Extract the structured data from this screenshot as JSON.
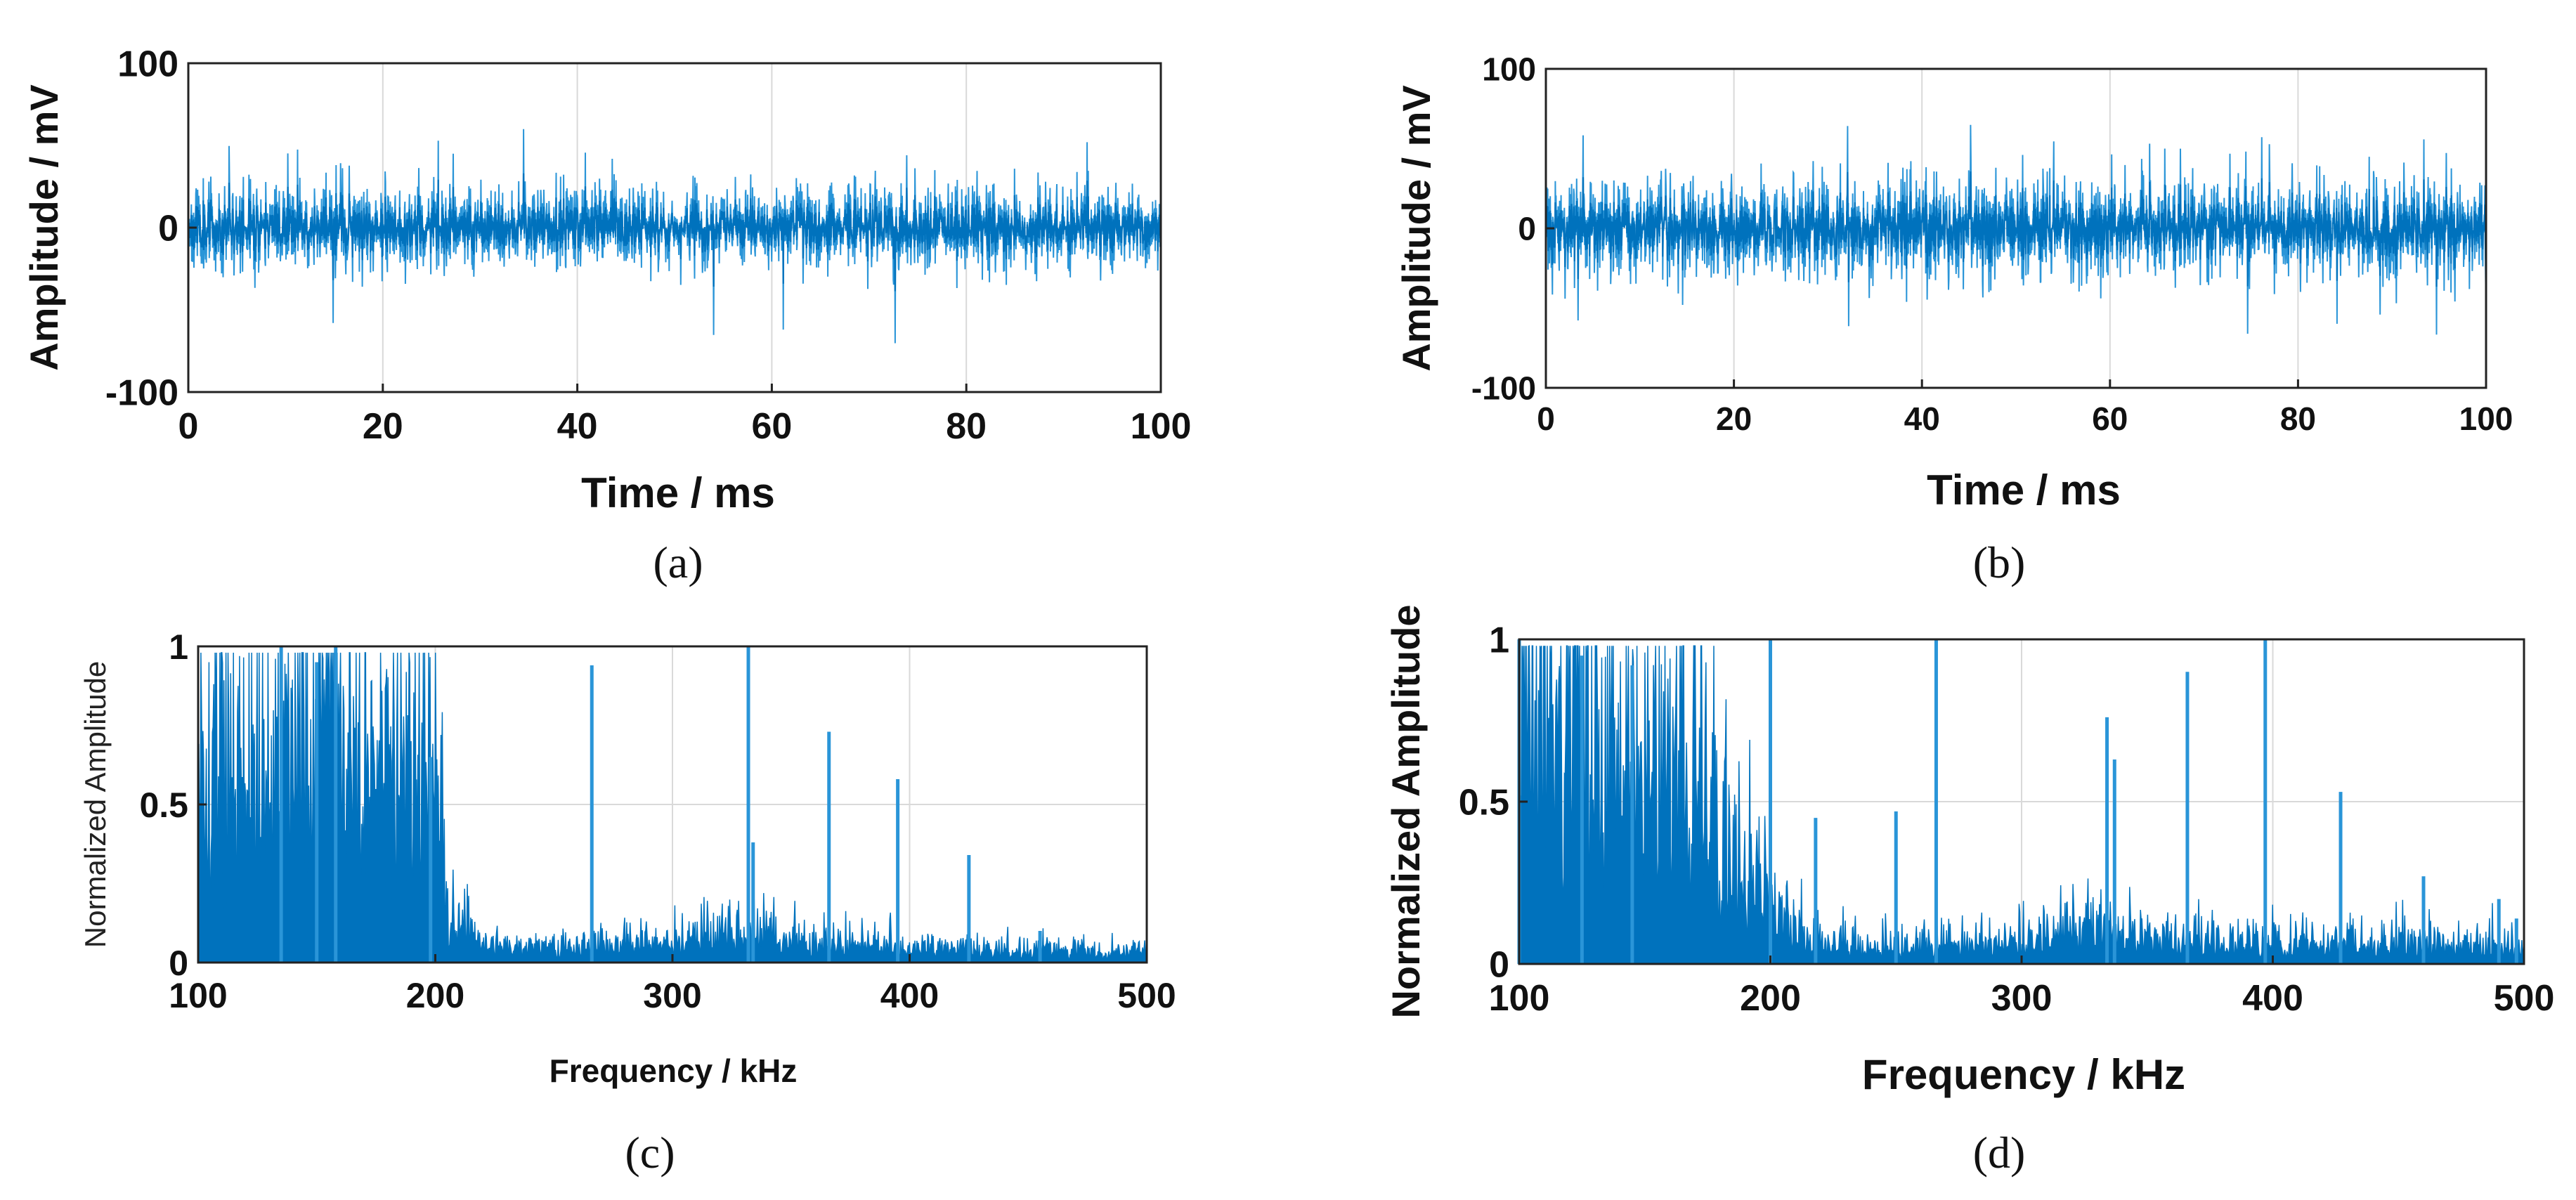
{
  "colors": {
    "signal": "#0072BD",
    "signal_light": "#2a95d8",
    "grid": "#d9d9d9",
    "axis": "#222222"
  },
  "chart_data": [
    {
      "id": "a",
      "type": "line",
      "kind": "time",
      "caption": "(a)",
      "xlabel": "Time / ms",
      "ylabel": "Amplitude / mV",
      "xlim": [
        0,
        100
      ],
      "ylim": [
        -100,
        100
      ],
      "xticks": [
        0,
        20,
        40,
        60,
        80,
        100
      ],
      "yticks": [
        -100,
        0,
        100
      ],
      "xtick_labels": [
        "0",
        "20",
        "40",
        "60",
        "80",
        "100"
      ],
      "ytick_labels": [
        "-100",
        "0",
        "100"
      ],
      "grid": true,
      "noise": {
        "rms": 13,
        "peak_envelope": 38,
        "max_peak": 55,
        "min_peak": -72,
        "seed": 11
      },
      "series": [
        {
          "name": "time-domain signal",
          "description": "broadband noise centered at 0 mV, roughly within ±40 mV with occasional spikes to about +55 / -70 mV"
        }
      ]
    },
    {
      "id": "b",
      "type": "line",
      "kind": "time",
      "caption": "(b)",
      "xlabel": "Time / ms",
      "ylabel": "Amplitude / mV",
      "xlim": [
        0,
        100
      ],
      "ylim": [
        -100,
        100
      ],
      "xticks": [
        0,
        20,
        40,
        60,
        80,
        100
      ],
      "yticks": [
        -100,
        0,
        100
      ],
      "xtick_labels": [
        "0",
        "20",
        "40",
        "60",
        "80",
        "100"
      ],
      "ytick_labels": [
        "-100",
        "0",
        "100"
      ],
      "grid": true,
      "noise": {
        "rms": 16,
        "peak_envelope": 45,
        "max_peak": 65,
        "min_peak": -70,
        "seed": 29
      },
      "series": [
        {
          "name": "time-domain signal",
          "description": "broadband noise centered at 0 mV, roughly within ±50 mV with spikes to about +65 / -70 mV"
        }
      ]
    },
    {
      "id": "c",
      "type": "line",
      "kind": "spectrum",
      "caption": "(c)",
      "xlabel": "Frequency / kHz",
      "ylabel": "Normalized Amplitude",
      "xlim": [
        100,
        500
      ],
      "ylim": [
        0,
        1
      ],
      "xticks": [
        100,
        200,
        300,
        400,
        500
      ],
      "yticks": [
        0,
        0.5,
        1
      ],
      "xtick_labels": [
        "100",
        "200",
        "300",
        "400",
        "500"
      ],
      "ytick_labels": [
        "0",
        "0.5",
        "1"
      ],
      "grid": true,
      "envelope": [
        [
          100,
          0.45
        ],
        [
          120,
          0.42
        ],
        [
          140,
          0.5
        ],
        [
          160,
          0.62
        ],
        [
          180,
          0.5
        ],
        [
          200,
          0.42
        ],
        [
          205,
          0.12
        ],
        [
          220,
          0.05
        ],
        [
          240,
          0.03
        ],
        [
          260,
          0.04
        ],
        [
          300,
          0.05
        ],
        [
          320,
          0.08
        ],
        [
          340,
          0.07
        ],
        [
          360,
          0.05
        ],
        [
          400,
          0.04
        ],
        [
          450,
          0.03
        ],
        [
          500,
          0.025
        ]
      ],
      "spikes": [
        [
          135,
          1.0
        ],
        [
          150,
          0.95
        ],
        [
          158,
          1.0
        ],
        [
          198,
          0.65
        ],
        [
          266,
          0.94
        ],
        [
          332,
          1.0
        ],
        [
          334,
          0.38
        ],
        [
          366,
          0.73
        ],
        [
          395,
          0.58
        ],
        [
          425,
          0.34
        ],
        [
          455,
          0.1
        ]
      ],
      "seed": 5,
      "series": [
        {
          "name": "normalized spectrum"
        }
      ]
    },
    {
      "id": "d",
      "type": "line",
      "kind": "spectrum",
      "caption": "(d)",
      "xlabel": "Frequency / kHz",
      "ylabel": "Normalized Amplitude",
      "xlim": [
        100,
        500
      ],
      "ylim": [
        0,
        1
      ],
      "xticks": [
        100,
        200,
        300,
        400,
        500
      ],
      "yticks": [
        0,
        0.5,
        1
      ],
      "xtick_labels": [
        "100",
        "200",
        "300",
        "400",
        "500"
      ],
      "ytick_labels": [
        "0",
        "0.5",
        "1"
      ],
      "grid": true,
      "envelope": [
        [
          100,
          0.62
        ],
        [
          120,
          0.55
        ],
        [
          140,
          0.52
        ],
        [
          160,
          0.5
        ],
        [
          175,
          0.35
        ],
        [
          190,
          0.2
        ],
        [
          200,
          0.14
        ],
        [
          215,
          0.06
        ],
        [
          240,
          0.04
        ],
        [
          300,
          0.06
        ],
        [
          330,
          0.09
        ],
        [
          360,
          0.06
        ],
        [
          400,
          0.05
        ],
        [
          450,
          0.05
        ],
        [
          500,
          0.04
        ]
      ],
      "spikes": [
        [
          100,
          1.0
        ],
        [
          125,
          0.95
        ],
        [
          145,
          0.92
        ],
        [
          200,
          1.0
        ],
        [
          218,
          0.45
        ],
        [
          250,
          0.47
        ],
        [
          266,
          1.0
        ],
        [
          334,
          0.76
        ],
        [
          337,
          0.63
        ],
        [
          366,
          0.9
        ],
        [
          397,
          1.0
        ],
        [
          427,
          0.53
        ],
        [
          460,
          0.27
        ],
        [
          490,
          0.2
        ],
        [
          497,
          0.14
        ]
      ],
      "seed": 17,
      "series": [
        {
          "name": "normalized spectrum"
        }
      ]
    }
  ]
}
